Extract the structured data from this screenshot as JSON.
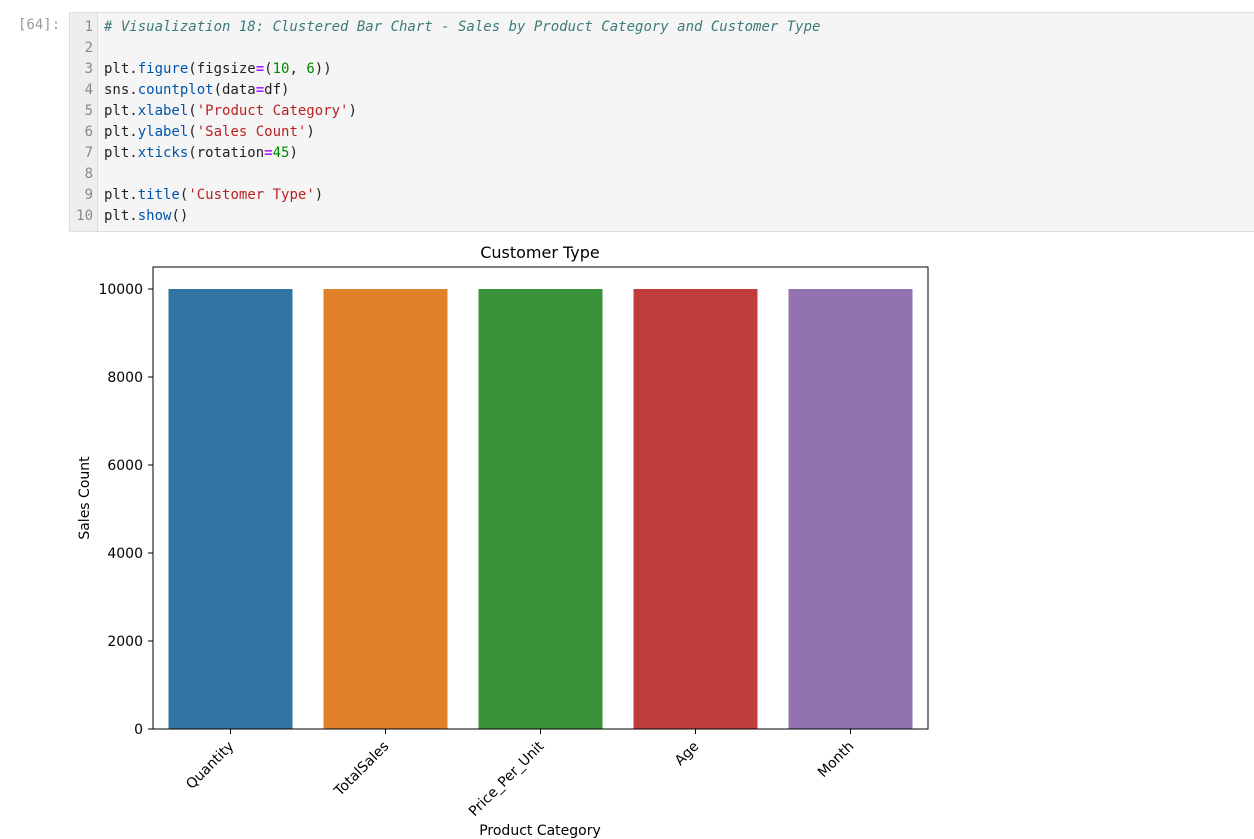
{
  "cell": {
    "prompt": "[64]:",
    "line_numbers": [
      1,
      2,
      3,
      4,
      5,
      6,
      7,
      8,
      9,
      10
    ],
    "lines": [
      "# Visualization 18: Clustered Bar Chart - Sales by Product Category and Customer Type",
      null,
      "plt.figure(figsize=(10, 6))",
      "sns.countplot(data=df)",
      "plt.xlabel('Product Category')",
      "plt.ylabel('Sales Count')",
      "plt.xticks(rotation=45)",
      null,
      "plt.title('Customer Type')",
      "plt.show()"
    ]
  },
  "chart_data": {
    "type": "bar",
    "title": "Customer Type",
    "x_label": "Product Category",
    "y_label": "Sales Count",
    "categories": [
      "Quantity",
      "TotalSales",
      "Price_Per_Unit",
      "Age",
      "Month"
    ],
    "values": [
      10000,
      10000,
      10000,
      10000,
      10000
    ],
    "colors": [
      "#3274a1",
      "#e1812c",
      "#3a923a",
      "#c03d3e",
      "#9372b2"
    ],
    "ylim": [
      0,
      10500
    ],
    "yticks": [
      0,
      2000,
      4000,
      6000,
      8000,
      10000
    ],
    "grid": false
  }
}
